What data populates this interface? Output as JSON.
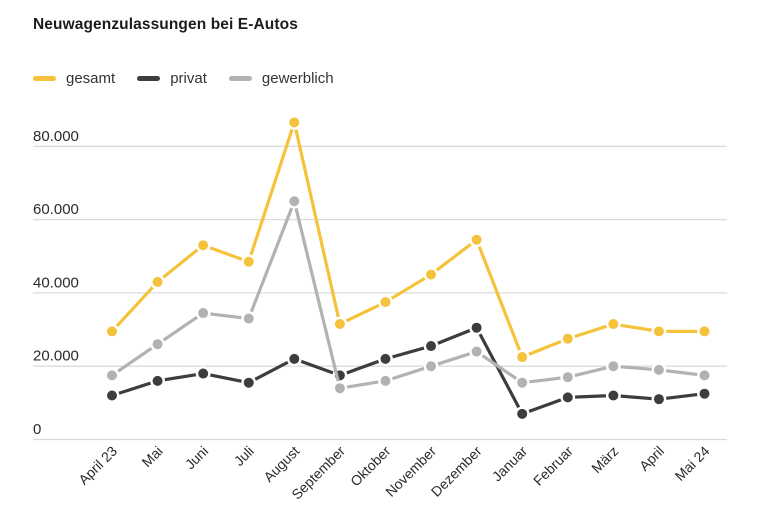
{
  "chart_data": {
    "type": "line",
    "title": "Neuwagenzulassungen bei E-Autos",
    "categories": [
      "April 23",
      "Mai",
      "Juni",
      "Juli",
      "August",
      "September",
      "Oktober",
      "November",
      "Dezember",
      "Januar",
      "Februar",
      "März",
      "April",
      "Mai 24"
    ],
    "series": [
      {
        "name": "gesamt",
        "color": "#F5C33B",
        "values": [
          29500,
          43000,
          53000,
          48500,
          86500,
          31500,
          37500,
          45000,
          54500,
          22500,
          27500,
          31500,
          29500,
          29500
        ]
      },
      {
        "name": "privat",
        "color": "#3D3D3D",
        "values": [
          12000,
          16000,
          18000,
          15500,
          22000,
          17500,
          22000,
          25500,
          30500,
          7000,
          11500,
          12000,
          11000,
          12500
        ]
      },
      {
        "name": "gewerblich",
        "color": "#B2B2B2",
        "values": [
          17500,
          26000,
          34500,
          33000,
          65000,
          14000,
          16000,
          20000,
          24000,
          15500,
          17000,
          20000,
          19000,
          17500
        ]
      }
    ],
    "y_axis": {
      "ticks": [
        {
          "value": 0,
          "label": "0"
        },
        {
          "value": 20000,
          "label": "20.000"
        },
        {
          "value": 40000,
          "label": "40.000"
        },
        {
          "value": 60000,
          "label": "60.000"
        },
        {
          "value": 80000,
          "label": "80.000"
        }
      ],
      "range": [
        0,
        88000
      ]
    },
    "x_axis": {
      "label_rotation_deg": -45
    },
    "legend_position": "top-left",
    "grid": "horizontal",
    "colors": {
      "grid": "#DBDBDB",
      "axis_text": "#2B2B2B",
      "title_text": "#1C1C1C",
      "background": "#FFFFFF"
    }
  }
}
